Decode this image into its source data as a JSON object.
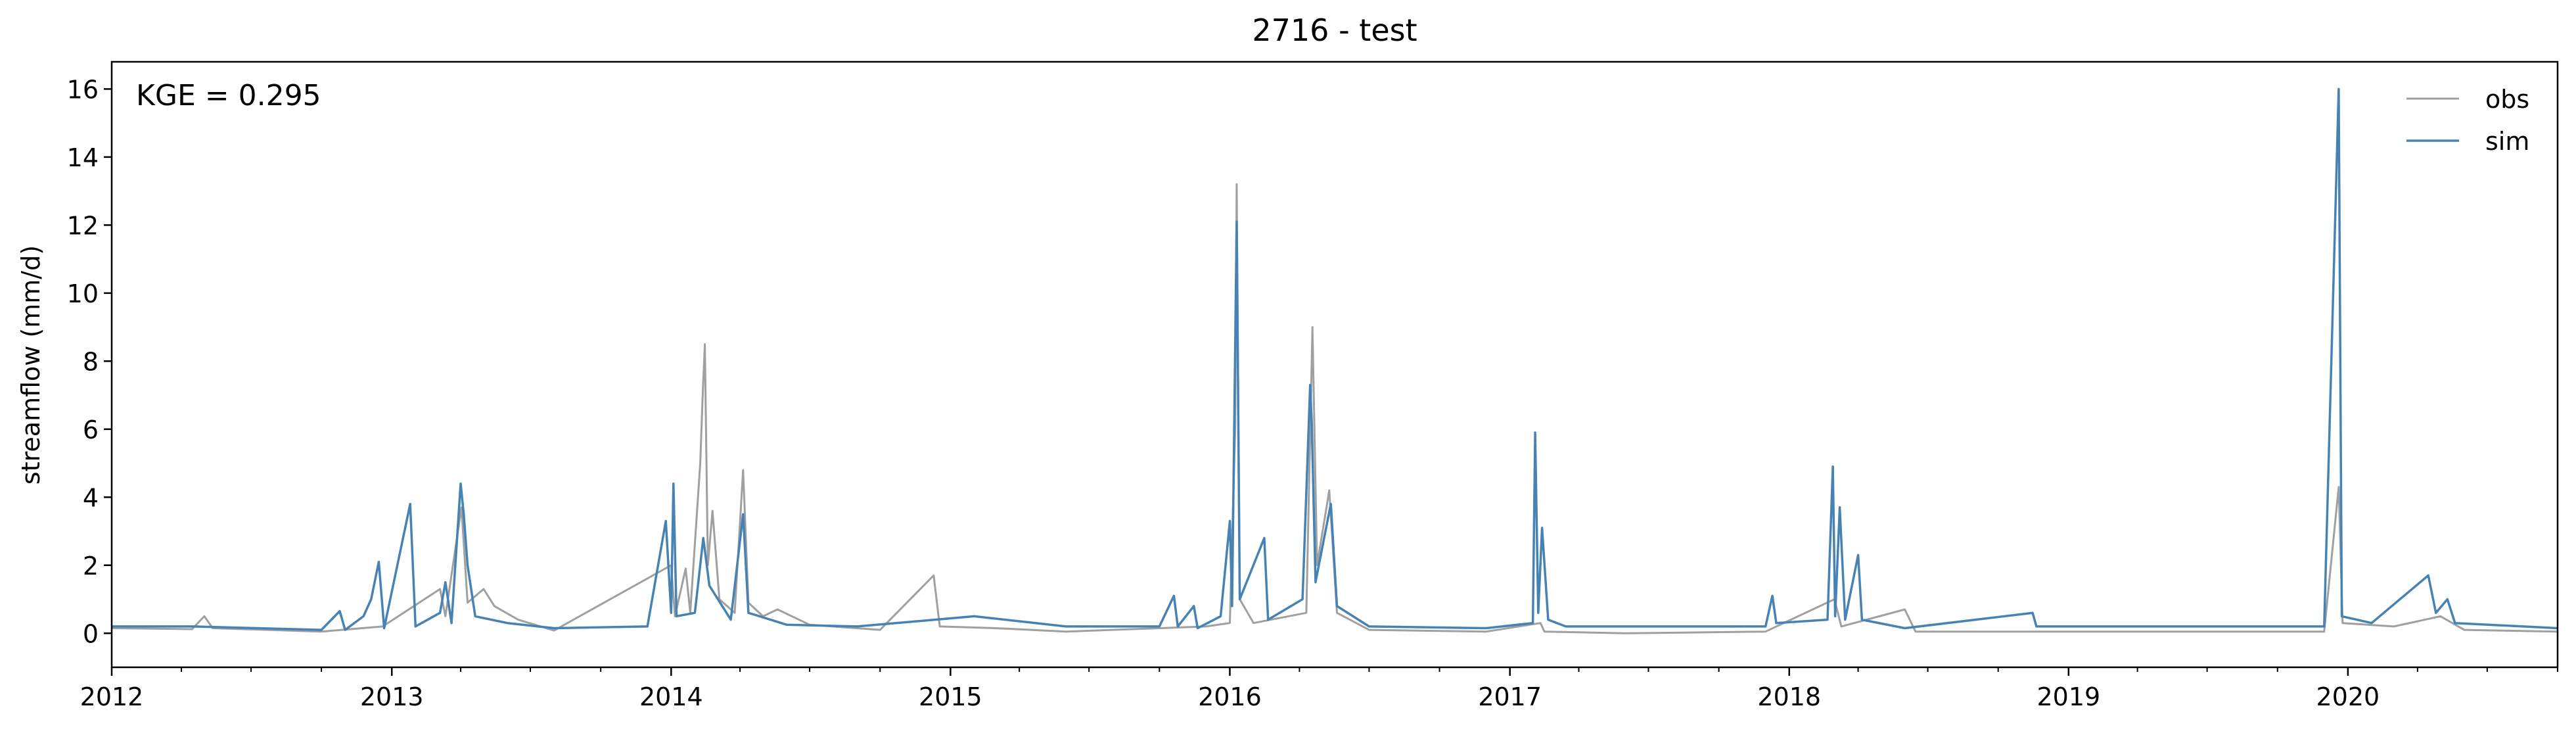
{
  "chart_data": {
    "type": "line",
    "title": "2716 - test",
    "xlabel": "",
    "ylabel": "streamflow (mm/d)",
    "annotation": "KGE = 0.295",
    "xlim": [
      "2012-01-01",
      "2020-10-01"
    ],
    "ylim": [
      -1,
      16.8
    ],
    "x_ticks": [
      "2012",
      "2013",
      "2014",
      "2015",
      "2016",
      "2017",
      "2018",
      "2019",
      "2020"
    ],
    "y_ticks": [
      0,
      2,
      4,
      6,
      8,
      10,
      12,
      14,
      16
    ],
    "legend_position": "top-right",
    "grid": false,
    "series": [
      {
        "name": "obs",
        "color": "#a0a0a0",
        "points": [
          [
            "2012-01-01",
            0.15
          ],
          [
            "2012-04-15",
            0.12
          ],
          [
            "2012-05-01",
            0.5
          ],
          [
            "2012-05-12",
            0.15
          ],
          [
            "2012-10-01",
            0.05
          ],
          [
            "2012-12-20",
            0.2
          ],
          [
            "2013-03-05",
            1.3
          ],
          [
            "2013-03-12",
            0.5
          ],
          [
            "2013-04-02",
            3.7
          ],
          [
            "2013-04-10",
            0.9
          ],
          [
            "2013-05-01",
            1.3
          ],
          [
            "2013-05-15",
            0.8
          ],
          [
            "2013-06-15",
            0.4
          ],
          [
            "2013-08-01",
            0.08
          ],
          [
            "2014-01-01",
            2.0
          ],
          [
            "2014-01-06",
            0.5
          ],
          [
            "2014-01-20",
            1.9
          ],
          [
            "2014-01-26",
            0.6
          ],
          [
            "2014-02-08",
            5.0
          ],
          [
            "2014-02-11",
            6.9
          ],
          [
            "2014-02-14",
            8.5
          ],
          [
            "2014-02-18",
            2.0
          ],
          [
            "2014-02-24",
            3.6
          ],
          [
            "2014-03-05",
            1.0
          ],
          [
            "2014-03-25",
            0.6
          ],
          [
            "2014-04-05",
            4.8
          ],
          [
            "2014-04-12",
            0.9
          ],
          [
            "2014-05-01",
            0.5
          ],
          [
            "2014-05-20",
            0.7
          ],
          [
            "2014-07-01",
            0.25
          ],
          [
            "2014-10-01",
            0.1
          ],
          [
            "2014-12-10",
            1.7
          ],
          [
            "2014-12-18",
            0.2
          ],
          [
            "2015-03-01",
            0.15
          ],
          [
            "2015-06-01",
            0.05
          ],
          [
            "2015-12-01",
            0.2
          ],
          [
            "2016-01-01",
            0.3
          ],
          [
            "2016-01-08",
            6.0
          ],
          [
            "2016-01-10",
            13.2
          ],
          [
            "2016-01-14",
            1.0
          ],
          [
            "2016-02-01",
            0.3
          ],
          [
            "2016-04-10",
            0.6
          ],
          [
            "2016-04-18",
            9.0
          ],
          [
            "2016-04-24",
            2.0
          ],
          [
            "2016-05-10",
            4.2
          ],
          [
            "2016-05-20",
            0.6
          ],
          [
            "2016-07-01",
            0.1
          ],
          [
            "2016-12-01",
            0.05
          ],
          [
            "2017-02-10",
            0.3
          ],
          [
            "2017-02-15",
            0.05
          ],
          [
            "2017-06-01",
            0.0
          ],
          [
            "2017-12-01",
            0.05
          ],
          [
            "2018-03-01",
            1.0
          ],
          [
            "2018-03-10",
            0.2
          ],
          [
            "2018-06-01",
            0.7
          ],
          [
            "2018-06-15",
            0.05
          ],
          [
            "2019-12-01",
            0.05
          ],
          [
            "2019-12-20",
            4.3
          ],
          [
            "2019-12-25",
            0.3
          ],
          [
            "2020-03-01",
            0.2
          ],
          [
            "2020-05-01",
            0.5
          ],
          [
            "2020-06-01",
            0.1
          ],
          [
            "2020-10-01",
            0.05
          ]
        ]
      },
      {
        "name": "sim",
        "color": "#4682b4",
        "points": [
          [
            "2012-01-01",
            0.2
          ],
          [
            "2012-04-15",
            0.2
          ],
          [
            "2012-10-01",
            0.1
          ],
          [
            "2012-10-25",
            0.65
          ],
          [
            "2012-11-01",
            0.1
          ],
          [
            "2012-11-25",
            0.5
          ],
          [
            "2012-12-05",
            1.0
          ],
          [
            "2012-12-15",
            2.1
          ],
          [
            "2012-12-22",
            0.15
          ],
          [
            "2013-01-25",
            3.8
          ],
          [
            "2013-02-01",
            0.2
          ],
          [
            "2013-03-05",
            0.6
          ],
          [
            "2013-03-12",
            1.5
          ],
          [
            "2013-03-20",
            0.3
          ],
          [
            "2013-04-01",
            4.4
          ],
          [
            "2013-04-05",
            3.5
          ],
          [
            "2013-04-10",
            2.0
          ],
          [
            "2013-04-20",
            0.5
          ],
          [
            "2013-06-01",
            0.3
          ],
          [
            "2013-08-01",
            0.15
          ],
          [
            "2013-12-01",
            0.2
          ],
          [
            "2013-12-25",
            3.3
          ],
          [
            "2014-01-01",
            0.6
          ],
          [
            "2014-01-04",
            4.4
          ],
          [
            "2014-01-08",
            0.5
          ],
          [
            "2014-02-01",
            0.6
          ],
          [
            "2014-02-12",
            2.8
          ],
          [
            "2014-02-20",
            1.4
          ],
          [
            "2014-03-20",
            0.4
          ],
          [
            "2014-04-05",
            3.5
          ],
          [
            "2014-04-12",
            0.6
          ],
          [
            "2014-06-01",
            0.25
          ],
          [
            "2014-09-01",
            0.2
          ],
          [
            "2015-02-01",
            0.5
          ],
          [
            "2015-06-01",
            0.2
          ],
          [
            "2015-10-01",
            0.2
          ],
          [
            "2015-10-20",
            1.1
          ],
          [
            "2015-10-25",
            0.2
          ],
          [
            "2015-11-15",
            0.8
          ],
          [
            "2015-11-20",
            0.15
          ],
          [
            "2015-12-20",
            0.5
          ],
          [
            "2016-01-01",
            3.3
          ],
          [
            "2016-01-04",
            0.8
          ],
          [
            "2016-01-10",
            12.1
          ],
          [
            "2016-01-14",
            1.0
          ],
          [
            "2016-02-15",
            2.8
          ],
          [
            "2016-02-20",
            0.4
          ],
          [
            "2016-04-05",
            1.0
          ],
          [
            "2016-04-15",
            7.3
          ],
          [
            "2016-04-17",
            6.2
          ],
          [
            "2016-04-22",
            1.5
          ],
          [
            "2016-05-05",
            3.0
          ],
          [
            "2016-05-12",
            3.8
          ],
          [
            "2016-05-20",
            0.8
          ],
          [
            "2016-07-01",
            0.2
          ],
          [
            "2016-12-01",
            0.15
          ],
          [
            "2017-01-31",
            0.3
          ],
          [
            "2017-02-03",
            5.9
          ],
          [
            "2017-02-07",
            0.6
          ],
          [
            "2017-02-12",
            3.1
          ],
          [
            "2017-02-20",
            0.4
          ],
          [
            "2017-03-15",
            0.2
          ],
          [
            "2017-12-01",
            0.2
          ],
          [
            "2017-12-10",
            1.1
          ],
          [
            "2017-12-15",
            0.3
          ],
          [
            "2018-02-20",
            0.4
          ],
          [
            "2018-02-27",
            4.9
          ],
          [
            "2018-03-02",
            0.5
          ],
          [
            "2018-03-08",
            3.7
          ],
          [
            "2018-03-15",
            0.4
          ],
          [
            "2018-04-01",
            2.3
          ],
          [
            "2018-04-06",
            0.4
          ],
          [
            "2018-06-01",
            0.15
          ],
          [
            "2018-11-15",
            0.6
          ],
          [
            "2018-11-20",
            0.2
          ],
          [
            "2019-12-01",
            0.2
          ],
          [
            "2019-12-20",
            16.0
          ],
          [
            "2019-12-24",
            0.5
          ],
          [
            "2020-02-01",
            0.3
          ],
          [
            "2020-04-15",
            1.7
          ],
          [
            "2020-04-25",
            0.6
          ],
          [
            "2020-05-10",
            1.0
          ],
          [
            "2020-05-20",
            0.3
          ],
          [
            "2020-10-01",
            0.15
          ]
        ]
      }
    ]
  }
}
